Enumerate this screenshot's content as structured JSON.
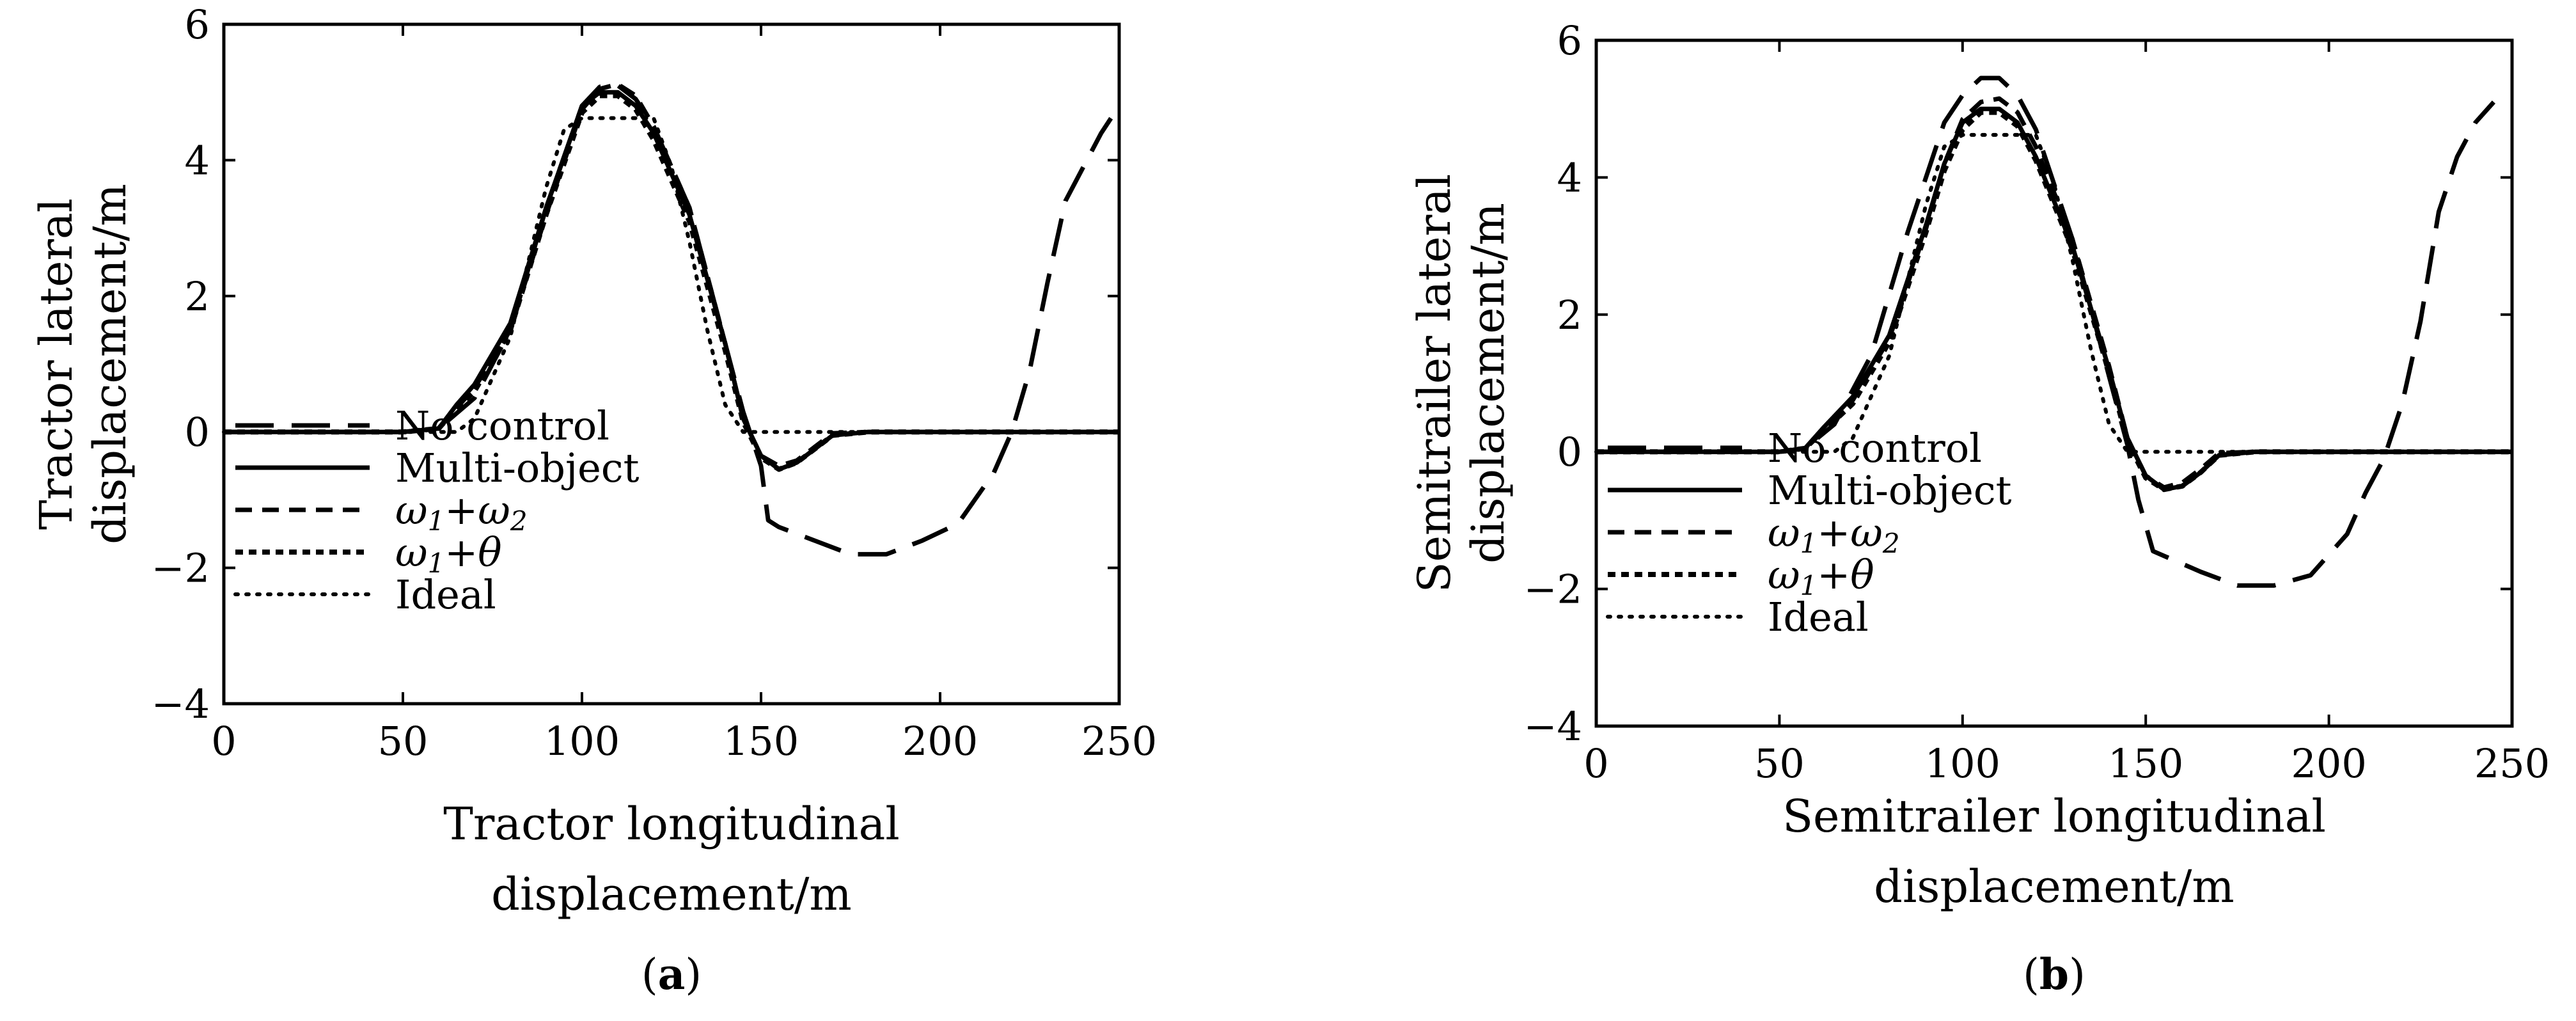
{
  "chart_data": [
    {
      "type": "line",
      "title": "",
      "xlabel": [
        "Tractor longitudinal",
        "displacement/m"
      ],
      "ylabel": [
        "Tractor lateral",
        "displacement/m"
      ],
      "xlim": [
        0,
        250
      ],
      "ylim": [
        -4,
        6
      ],
      "xticks": [
        "0",
        "50",
        "100",
        "150",
        "200",
        "250"
      ],
      "yticks": [
        "6",
        "4",
        "2",
        "0",
        "−2",
        "−4"
      ],
      "grid": false,
      "legend_position": "bottom-left",
      "caption": {
        "open": "(",
        "label": "a",
        "close": ")"
      },
      "series": [
        {
          "name": "No control",
          "style": "long-dash",
          "x": [
            0,
            50,
            60,
            70,
            80,
            90,
            100,
            105,
            110,
            115,
            120,
            130,
            140,
            145,
            150,
            152,
            155,
            165,
            175,
            185,
            195,
            205,
            215,
            220,
            225,
            230,
            235,
            240,
            245,
            250
          ],
          "y": [
            0,
            0,
            0.05,
            0.5,
            1.5,
            3.3,
            4.8,
            5.08,
            5.1,
            4.9,
            4.5,
            3.3,
            1.3,
            0.3,
            -0.5,
            -1.3,
            -1.4,
            -1.6,
            -1.8,
            -1.8,
            -1.6,
            -1.35,
            -0.6,
            0,
            0.9,
            2.2,
            3.4,
            3.9,
            4.4,
            4.8
          ]
        },
        {
          "name": "Multi-object",
          "style": "solid",
          "x": [
            0,
            50,
            60,
            65,
            70,
            80,
            90,
            100,
            105,
            110,
            115,
            120,
            130,
            140,
            145,
            150,
            155,
            160,
            165,
            170,
            180,
            200,
            250
          ],
          "y": [
            0,
            0,
            0.05,
            0.4,
            0.7,
            1.6,
            3.3,
            4.8,
            5.0,
            5.0,
            4.8,
            4.4,
            3.2,
            1.3,
            0.2,
            -0.35,
            -0.55,
            -0.45,
            -0.25,
            -0.05,
            0,
            0,
            0
          ]
        },
        {
          "name": "ω1+ω2",
          "style": "short-dash",
          "x": [
            0,
            50,
            60,
            65,
            70,
            80,
            90,
            100,
            105,
            110,
            115,
            120,
            130,
            140,
            145,
            150,
            155,
            160,
            165,
            170,
            180,
            200,
            250
          ],
          "y": [
            0,
            0,
            0.05,
            0.35,
            0.65,
            1.5,
            3.2,
            4.75,
            5.05,
            5.12,
            4.95,
            4.5,
            3.3,
            1.3,
            0.2,
            -0.35,
            -0.5,
            -0.42,
            -0.22,
            -0.02,
            0,
            0,
            0
          ]
        },
        {
          "name": "ω1+θ",
          "style": "dense-dash",
          "x": [
            0,
            50,
            60,
            65,
            70,
            80,
            90,
            100,
            105,
            110,
            115,
            120,
            130,
            140,
            145,
            150,
            155,
            160,
            165,
            170,
            180,
            200,
            250
          ],
          "y": [
            0,
            0,
            0.05,
            0.35,
            0.6,
            1.5,
            3.2,
            4.7,
            4.95,
            4.95,
            4.75,
            4.3,
            3.1,
            1.2,
            0.15,
            -0.38,
            -0.55,
            -0.45,
            -0.25,
            -0.05,
            0,
            0,
            0
          ]
        },
        {
          "name": "Ideal",
          "style": "dotted",
          "x": [
            0,
            60,
            65,
            70,
            80,
            85,
            90,
            95,
            100,
            105,
            110,
            115,
            120,
            125,
            130,
            135,
            140,
            145,
            150,
            200,
            250
          ],
          "y": [
            0,
            0,
            0,
            0.2,
            1.4,
            2.5,
            3.6,
            4.45,
            4.62,
            4.62,
            4.62,
            4.62,
            4.62,
            3.9,
            2.8,
            1.5,
            0.4,
            0,
            0,
            0,
            0
          ]
        }
      ]
    },
    {
      "type": "line",
      "title": "",
      "xlabel": [
        "Semitrailer longitudinal",
        "displacement/m"
      ],
      "ylabel": [
        "Semitrailer lateral",
        "displacement/m"
      ],
      "xlim": [
        0,
        250
      ],
      "ylim": [
        -4,
        6
      ],
      "xticks": [
        "0",
        "50",
        "100",
        "150",
        "200",
        "250"
      ],
      "yticks": [
        "6",
        "4",
        "2",
        "0",
        "−2",
        "−4"
      ],
      "grid": false,
      "legend_position": "bottom-left",
      "caption": {
        "open": "(",
        "label": "b",
        "close": ")"
      },
      "series": [
        {
          "name": "No control",
          "style": "long-dash",
          "x": [
            0,
            50,
            57,
            65,
            75,
            85,
            95,
            100,
            105,
            110,
            115,
            120,
            130,
            140,
            145,
            148,
            152,
            165,
            175,
            185,
            195,
            205,
            210,
            215,
            220,
            225,
            230,
            235,
            240,
            245
          ],
          "y": [
            0,
            0,
            0.05,
            0.4,
            1.4,
            3.2,
            4.8,
            5.2,
            5.45,
            5.45,
            5.2,
            4.7,
            3.1,
            1.1,
            0.1,
            -0.7,
            -1.45,
            -1.75,
            -1.95,
            -1.95,
            -1.8,
            -1.2,
            -0.6,
            -0.1,
            0.7,
            1.9,
            3.5,
            4.3,
            4.8,
            5.1
          ]
        },
        {
          "name": "Multi-object",
          "style": "solid",
          "x": [
            0,
            50,
            57,
            62,
            70,
            80,
            90,
            95,
            100,
            105,
            110,
            115,
            120,
            130,
            140,
            145,
            150,
            155,
            160,
            165,
            170,
            180,
            200,
            250
          ],
          "y": [
            0,
            0,
            0.05,
            0.35,
            0.8,
            1.7,
            3.3,
            4.2,
            4.8,
            5.0,
            5.0,
            4.8,
            4.3,
            3.0,
            1.2,
            0.2,
            -0.35,
            -0.55,
            -0.5,
            -0.3,
            -0.05,
            0,
            0,
            0
          ]
        },
        {
          "name": "ω1+ω2",
          "style": "short-dash",
          "x": [
            0,
            50,
            57,
            62,
            70,
            80,
            90,
            95,
            100,
            105,
            110,
            115,
            120,
            130,
            140,
            145,
            150,
            155,
            160,
            165,
            170,
            180,
            200,
            250
          ],
          "y": [
            0,
            0,
            0.05,
            0.3,
            0.75,
            1.65,
            3.25,
            4.2,
            4.85,
            5.1,
            5.15,
            4.95,
            4.45,
            3.1,
            1.25,
            0.2,
            -0.35,
            -0.52,
            -0.45,
            -0.25,
            -0.02,
            0,
            0,
            0
          ]
        },
        {
          "name": "ω1+θ",
          "style": "dense-dash",
          "x": [
            0,
            50,
            57,
            62,
            70,
            80,
            90,
            95,
            100,
            105,
            110,
            115,
            120,
            130,
            140,
            145,
            150,
            155,
            160,
            165,
            170,
            180,
            200,
            250
          ],
          "y": [
            0,
            0,
            0.05,
            0.3,
            0.7,
            1.6,
            3.2,
            4.1,
            4.7,
            4.95,
            4.95,
            4.75,
            4.25,
            2.95,
            1.15,
            0.15,
            -0.38,
            -0.55,
            -0.5,
            -0.3,
            -0.05,
            0,
            0,
            0
          ]
        },
        {
          "name": "Ideal",
          "style": "dotted",
          "x": [
            0,
            60,
            65,
            70,
            80,
            85,
            90,
            95,
            100,
            105,
            110,
            115,
            120,
            125,
            130,
            135,
            140,
            145,
            150,
            200,
            250
          ],
          "y": [
            0,
            0,
            0,
            0.2,
            1.4,
            2.5,
            3.6,
            4.45,
            4.62,
            4.62,
            4.62,
            4.62,
            4.62,
            3.9,
            2.8,
            1.5,
            0.4,
            0,
            0,
            0,
            0
          ]
        }
      ]
    }
  ],
  "legend_sub": {
    "one": "1",
    "two": "2"
  }
}
